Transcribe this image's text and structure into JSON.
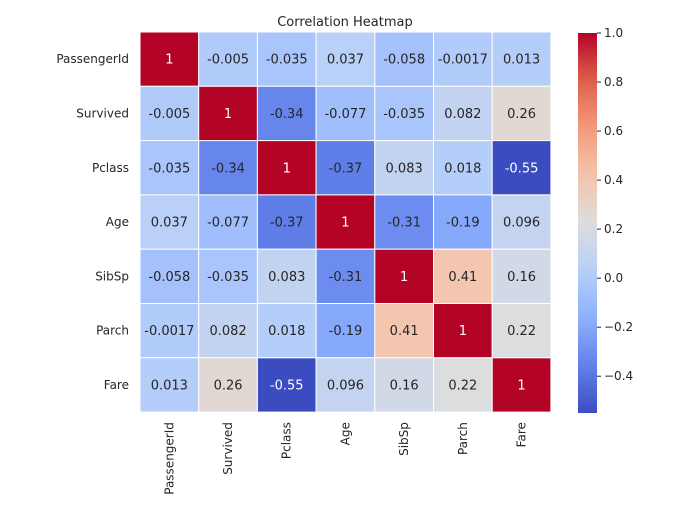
{
  "chart_data": {
    "type": "heatmap",
    "title": "Correlation Heatmap",
    "xlabel": "",
    "ylabel": "",
    "row_labels": [
      "PassengerId",
      "Survived",
      "Pclass",
      "Age",
      "SibSp",
      "Parch",
      "Fare"
    ],
    "col_labels": [
      "PassengerId",
      "Survived",
      "Pclass",
      "Age",
      "SibSp",
      "Parch",
      "Fare"
    ],
    "values": [
      [
        1,
        -0.005,
        -0.035,
        0.037,
        -0.058,
        -0.0017,
        0.013
      ],
      [
        -0.005,
        1,
        -0.34,
        -0.077,
        -0.035,
        0.082,
        0.26
      ],
      [
        -0.035,
        -0.34,
        1,
        -0.37,
        0.083,
        0.018,
        -0.55
      ],
      [
        0.037,
        -0.077,
        -0.37,
        1,
        -0.31,
        -0.19,
        0.096
      ],
      [
        -0.058,
        -0.035,
        0.083,
        -0.31,
        1,
        0.41,
        0.16
      ],
      [
        -0.0017,
        0.082,
        0.018,
        -0.19,
        0.41,
        1,
        0.22
      ],
      [
        0.013,
        0.26,
        -0.55,
        0.096,
        0.16,
        0.22,
        1
      ]
    ],
    "cell_labels": [
      [
        "1",
        "-0.005",
        "-0.035",
        "0.037",
        "-0.058",
        "-0.0017",
        "0.013"
      ],
      [
        "-0.005",
        "1",
        "-0.34",
        "-0.077",
        "-0.035",
        "0.082",
        "0.26"
      ],
      [
        "-0.035",
        "-0.34",
        "1",
        "-0.37",
        "0.083",
        "0.018",
        "-0.55"
      ],
      [
        "0.037",
        "-0.077",
        "-0.37",
        "1",
        "-0.31",
        "-0.19",
        "0.096"
      ],
      [
        "-0.058",
        "-0.035",
        "0.083",
        "-0.31",
        "1",
        "0.41",
        "0.16"
      ],
      [
        "-0.0017",
        "0.082",
        "0.018",
        "-0.19",
        "0.41",
        "1",
        "0.22"
      ],
      [
        "0.013",
        "0.26",
        "-0.55",
        "0.096",
        "0.16",
        "0.22",
        "1"
      ]
    ],
    "colormap": "coolwarm",
    "vmin": -0.55,
    "vmax": 1,
    "colorbar_ticks": [
      1.0,
      0.8,
      0.6,
      0.4,
      0.2,
      0.0,
      -0.2,
      -0.4
    ],
    "colorbar_tick_labels": [
      "1.0",
      "0.8",
      "0.6",
      "0.4",
      "0.2",
      "0.0",
      "−0.2",
      "−0.4"
    ],
    "cell_border_color": "#ffffff",
    "grid": false
  }
}
